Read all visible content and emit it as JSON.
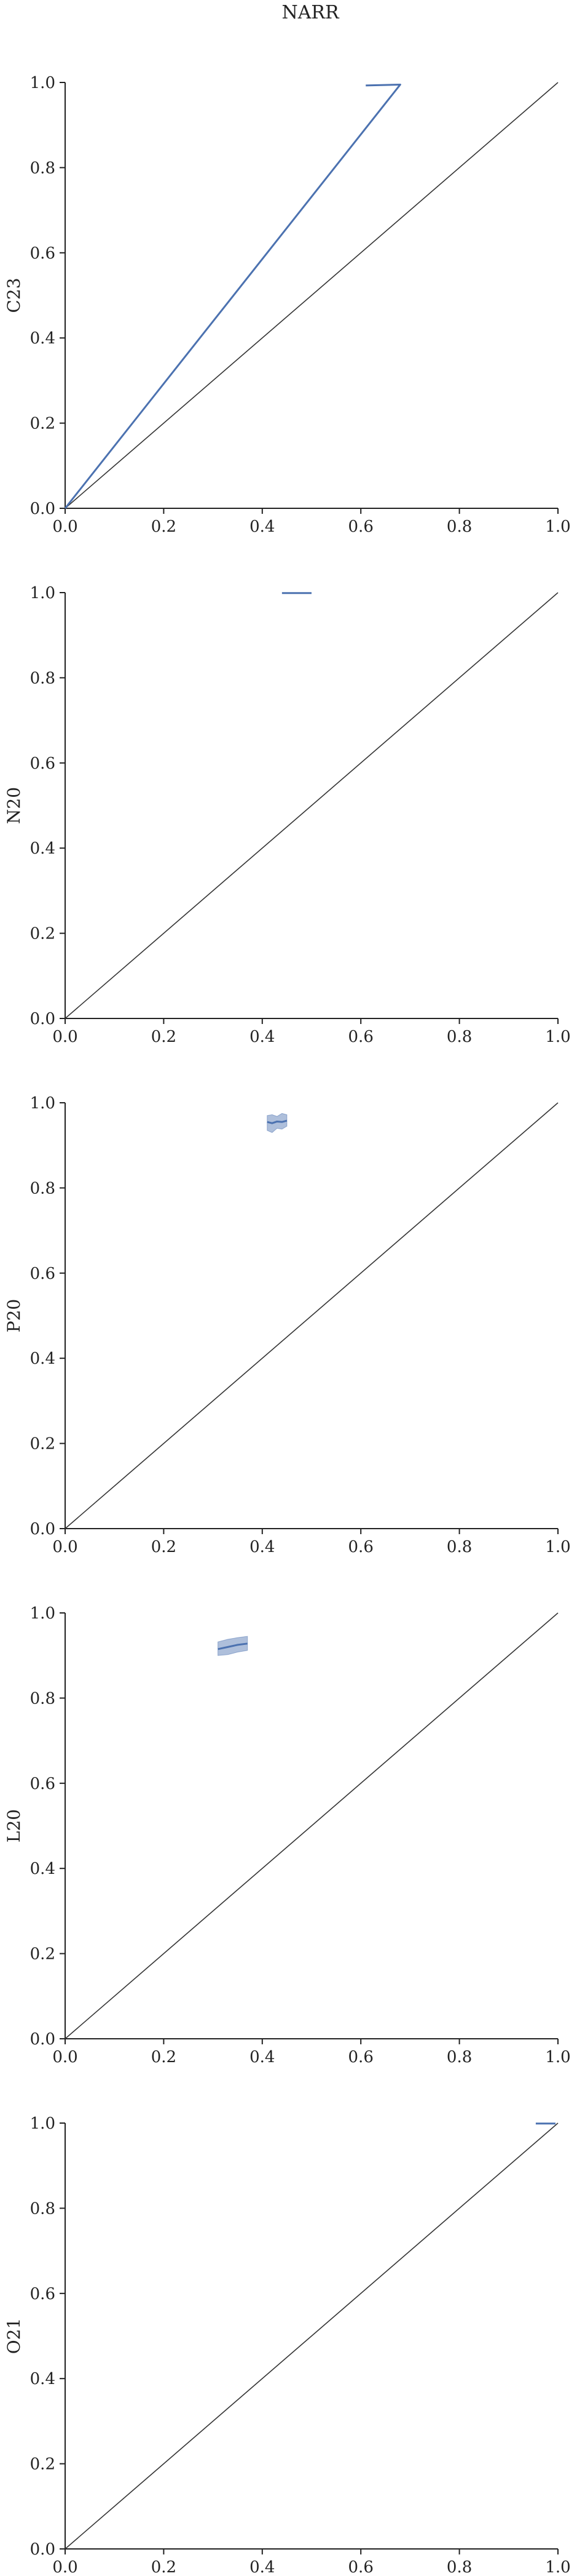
{
  "title": "NARR",
  "chart_data": [
    {
      "type": "line",
      "ylabel": "C23",
      "xlabel": "",
      "xlim": [
        0,
        1
      ],
      "ylim": [
        0,
        1
      ],
      "xticks": [
        "0.0",
        "0.2",
        "0.4",
        "0.6",
        "0.8",
        "1.0"
      ],
      "yticks": [
        "0.0",
        "0.2",
        "0.4",
        "0.6",
        "0.8",
        "1.0"
      ],
      "reference_line": {
        "x": [
          0,
          1
        ],
        "y": [
          0,
          1
        ],
        "color": "#333333"
      },
      "series": [
        {
          "color": "#4c72b0",
          "x": [
            0.0,
            0.68,
            0.61
          ],
          "y": [
            0.0,
            0.995,
            0.993
          ]
        }
      ],
      "band": null,
      "grid": false,
      "legend": "none"
    },
    {
      "type": "line",
      "ylabel": "N20",
      "xlabel": "",
      "xlim": [
        0,
        1
      ],
      "ylim": [
        0,
        1
      ],
      "xticks": [
        "0.0",
        "0.2",
        "0.4",
        "0.6",
        "0.8",
        "1.0"
      ],
      "yticks": [
        "0.0",
        "0.2",
        "0.4",
        "0.6",
        "0.8",
        "1.0"
      ],
      "reference_line": {
        "x": [
          0,
          1
        ],
        "y": [
          0,
          1
        ],
        "color": "#333333"
      },
      "series": [
        {
          "color": "#4c72b0",
          "x": [
            0.44,
            0.5
          ],
          "y": [
            0.999,
            0.999
          ]
        }
      ],
      "band": null,
      "grid": false,
      "legend": "none"
    },
    {
      "type": "line",
      "ylabel": "P20",
      "xlabel": "",
      "xlim": [
        0,
        1
      ],
      "ylim": [
        0,
        1
      ],
      "xticks": [
        "0.0",
        "0.2",
        "0.4",
        "0.6",
        "0.8",
        "1.0"
      ],
      "yticks": [
        "0.0",
        "0.2",
        "0.4",
        "0.6",
        "0.8",
        "1.0"
      ],
      "reference_line": {
        "x": [
          0,
          1
        ],
        "y": [
          0,
          1
        ],
        "color": "#333333"
      },
      "series": [
        {
          "color": "#4c72b0",
          "x": [
            0.41,
            0.42,
            0.43,
            0.44,
            0.45
          ],
          "y": [
            0.955,
            0.952,
            0.956,
            0.955,
            0.958
          ]
        }
      ],
      "band": {
        "color": "#4c72b0",
        "x": [
          0.41,
          0.42,
          0.43,
          0.44,
          0.45
        ],
        "lower": [
          0.935,
          0.93,
          0.94,
          0.938,
          0.945
        ],
        "upper": [
          0.97,
          0.972,
          0.968,
          0.975,
          0.972
        ]
      },
      "grid": false,
      "legend": "none"
    },
    {
      "type": "line",
      "ylabel": "L20",
      "xlabel": "",
      "xlim": [
        0,
        1
      ],
      "ylim": [
        0,
        1
      ],
      "xticks": [
        "0.0",
        "0.2",
        "0.4",
        "0.6",
        "0.8",
        "1.0"
      ],
      "yticks": [
        "0.0",
        "0.2",
        "0.4",
        "0.6",
        "0.8",
        "1.0"
      ],
      "reference_line": {
        "x": [
          0,
          1
        ],
        "y": [
          0,
          1
        ],
        "color": "#333333"
      },
      "series": [
        {
          "color": "#4c72b0",
          "x": [
            0.31,
            0.33,
            0.35,
            0.37
          ],
          "y": [
            0.915,
            0.92,
            0.925,
            0.928
          ]
        }
      ],
      "band": {
        "color": "#4c72b0",
        "x": [
          0.31,
          0.33,
          0.35,
          0.37
        ],
        "lower": [
          0.9,
          0.902,
          0.908,
          0.912
        ],
        "upper": [
          0.932,
          0.938,
          0.942,
          0.945
        ]
      },
      "grid": false,
      "legend": "none"
    },
    {
      "type": "line",
      "ylabel": "O21",
      "xlabel": "",
      "xlim": [
        0,
        1
      ],
      "ylim": [
        0,
        1
      ],
      "xticks": [
        "0.0",
        "0.2",
        "0.4",
        "0.6",
        "0.8",
        "1.0"
      ],
      "yticks": [
        "0.0",
        "0.2",
        "0.4",
        "0.6",
        "0.8",
        "1.0"
      ],
      "reference_line": {
        "x": [
          0,
          1
        ],
        "y": [
          0,
          1
        ],
        "color": "#333333"
      },
      "series": [
        {
          "color": "#4c72b0",
          "x": [
            0.955,
            0.995
          ],
          "y": [
            0.999,
            0.999
          ]
        }
      ],
      "band": null,
      "grid": false,
      "legend": "none"
    }
  ]
}
